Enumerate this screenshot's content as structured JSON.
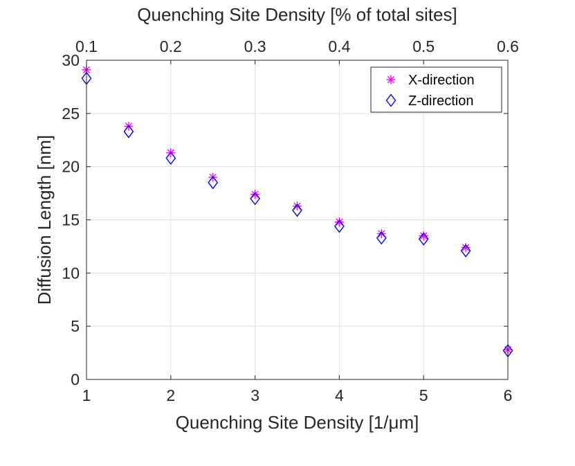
{
  "chart_data": {
    "type": "scatter",
    "title": "",
    "xlabel": "Quenching Site Density [1/μm]",
    "ylabel": "Diffusion Length [nm]",
    "x2label": "Quenching Site Density [% of total sites]",
    "xlim": [
      1,
      6
    ],
    "ylim": [
      0,
      30
    ],
    "x2lim": [
      0.1,
      0.6
    ],
    "xticks": [
      1,
      2,
      3,
      4,
      5,
      6
    ],
    "xtick_labels": [
      "1",
      "2",
      "3",
      "4",
      "5",
      "6"
    ],
    "yticks": [
      0,
      5,
      10,
      15,
      20,
      25,
      30
    ],
    "ytick_labels": [
      "0",
      "5",
      "10",
      "15",
      "20",
      "25",
      "30"
    ],
    "x2ticks": [
      0.1,
      0.2,
      0.3,
      0.4,
      0.5,
      0.6
    ],
    "x2tick_labels": [
      "0.1",
      "0.2",
      "0.3",
      "0.4",
      "0.5",
      "0.6"
    ],
    "grid": true,
    "legend_position": "top-right",
    "x": [
      1,
      1.5,
      2,
      2.5,
      3,
      3.5,
      4,
      4.5,
      5,
      5.5,
      6
    ],
    "series": [
      {
        "name": "X-direction",
        "marker": "asterisk",
        "color": "#ff00ff",
        "values": [
          29.1,
          23.8,
          21.3,
          19.0,
          17.4,
          16.3,
          14.8,
          13.7,
          13.5,
          12.4,
          2.8
        ]
      },
      {
        "name": "Z-direction",
        "marker": "diamond",
        "color": "#0000ff",
        "values": [
          28.3,
          23.3,
          20.8,
          18.5,
          17.0,
          15.9,
          14.4,
          13.3,
          13.2,
          12.1,
          2.7
        ]
      }
    ]
  }
}
